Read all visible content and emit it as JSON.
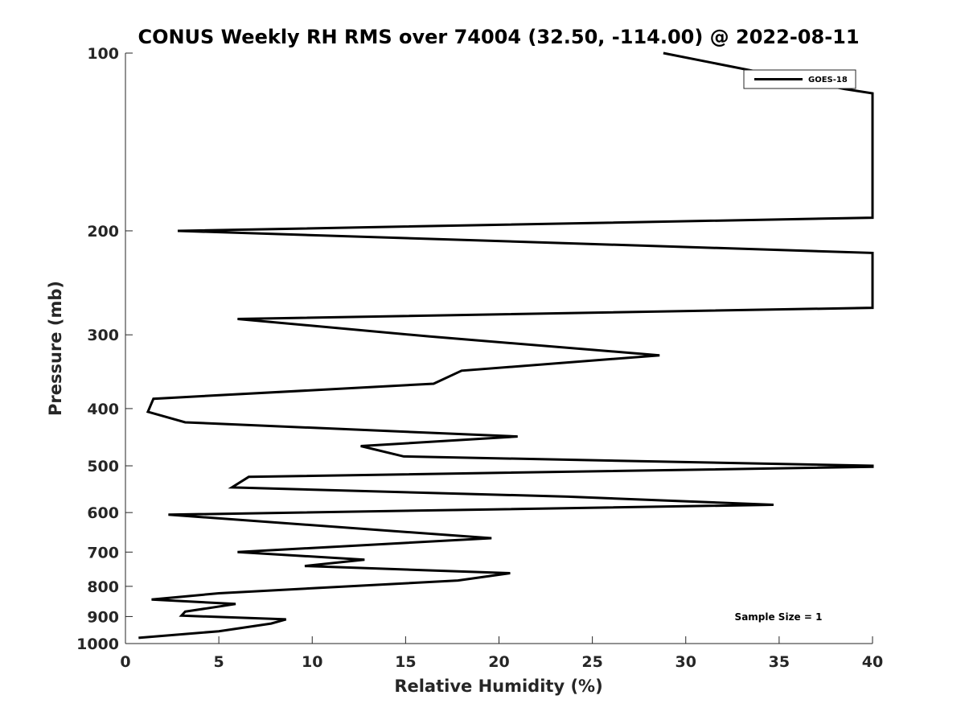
{
  "chart_data": {
    "type": "line",
    "title": "CONUS Weekly RH RMS over 74004 (32.50, -114.00) @ 2022-08-11",
    "xlabel": "Relative Humidity (%)",
    "ylabel": "Pressure (mb)",
    "xlim": [
      0,
      40
    ],
    "ylim": [
      100,
      1000
    ],
    "y_scale": "log",
    "y_reversed": true,
    "grid": false,
    "x_ticks": [
      "0",
      "5",
      "10",
      "15",
      "20",
      "25",
      "30",
      "35",
      "40"
    ],
    "y_ticks": [
      "100",
      "200",
      "300",
      "400",
      "500",
      "600",
      "700",
      "800",
      "900",
      "1000"
    ],
    "legend": {
      "entries": [
        "GOES-18"
      ],
      "placement": "top-right"
    },
    "annotation": "Sample Size = 1",
    "line_color": "#000000",
    "series": [
      {
        "name": "GOES-18",
        "points": [
          [
            28.8,
            100
          ],
          [
            38.5,
            115
          ],
          [
            40.0,
            117
          ],
          [
            40.0,
            190
          ],
          [
            2.8,
            200
          ],
          [
            40.0,
            218
          ],
          [
            40.0,
            270
          ],
          [
            6.0,
            282
          ],
          [
            16.3,
            302
          ],
          [
            28.6,
            325
          ],
          [
            18.0,
            345
          ],
          [
            16.5,
            363
          ],
          [
            1.5,
            385
          ],
          [
            1.2,
            405
          ],
          [
            3.2,
            422
          ],
          [
            21.0,
            446
          ],
          [
            12.6,
            463
          ],
          [
            14.9,
            482
          ],
          [
            40.0,
            500
          ],
          [
            40.0,
            502
          ],
          [
            6.6,
            522
          ],
          [
            5.7,
            544
          ],
          [
            23.7,
            564
          ],
          [
            34.7,
            582
          ],
          [
            2.3,
            605
          ],
          [
            19.6,
            663
          ],
          [
            6.0,
            700
          ],
          [
            12.8,
            721
          ],
          [
            9.6,
            739
          ],
          [
            20.6,
            760
          ],
          [
            17.8,
            782
          ],
          [
            10.3,
            805
          ],
          [
            5.0,
            822
          ],
          [
            1.4,
            842
          ],
          [
            5.9,
            857
          ],
          [
            3.2,
            883
          ],
          [
            3.0,
            897
          ],
          [
            8.6,
            910
          ],
          [
            7.8,
            925
          ],
          [
            5.0,
            953
          ],
          [
            0.7,
            978
          ]
        ]
      }
    ]
  }
}
